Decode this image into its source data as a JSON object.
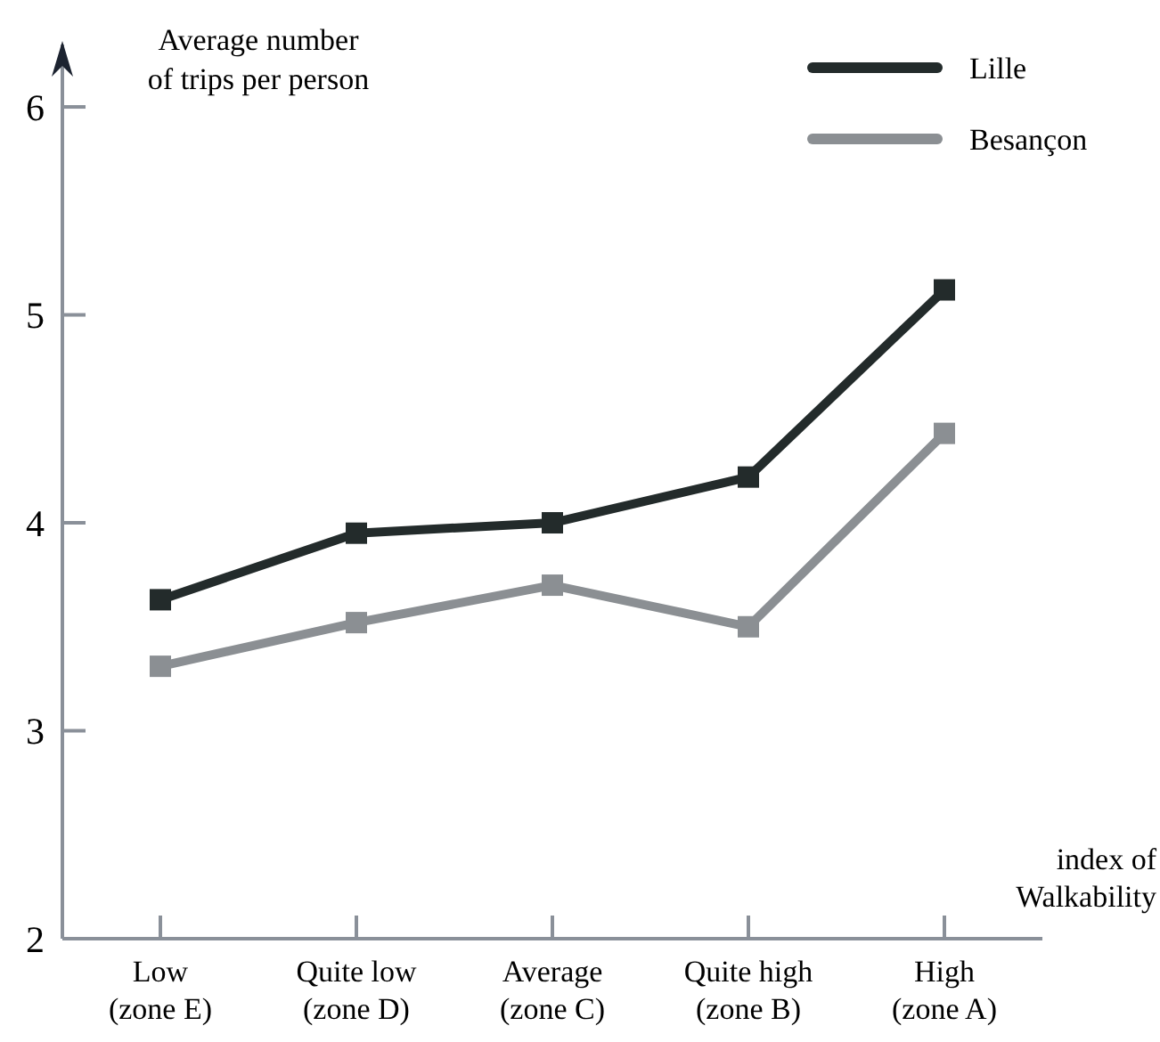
{
  "chart_data": {
    "type": "line",
    "ylabel": "Average number\nof trips per person",
    "xlabel": "index of\nWalkability",
    "categories": [
      "Low\n(zone E)",
      "Quite low\n(zone D)",
      "Average\n(zone C)",
      "Quite high\n(zone B)",
      "High\n(zone A)"
    ],
    "series": [
      {
        "name": "Lille",
        "color": "#232b2b",
        "values": [
          3.63,
          3.95,
          4.0,
          4.22,
          5.12
        ]
      },
      {
        "name": "Besançon",
        "color": "#8b8f93",
        "values": [
          3.31,
          3.52,
          3.7,
          3.5,
          4.43
        ]
      }
    ],
    "ylim": [
      2,
      6.3
    ],
    "yticks": [
      2,
      3,
      4,
      5,
      6
    ],
    "marker": "square",
    "line_style": "solid",
    "legend": "top right",
    "grid": false
  }
}
